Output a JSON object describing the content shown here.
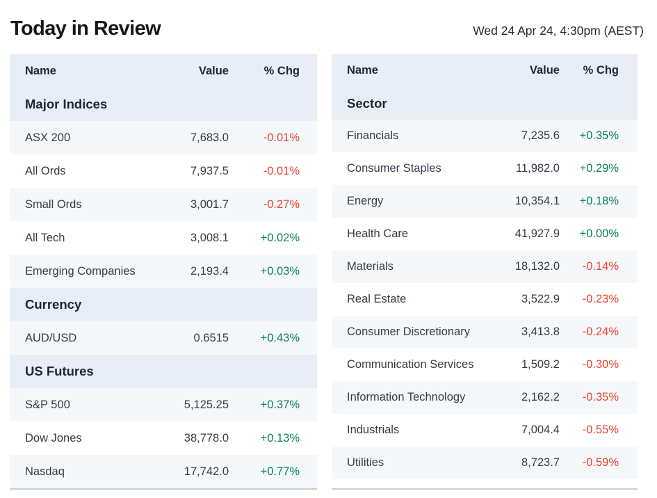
{
  "header": {
    "title": "Today in Review",
    "timestamp": "Wed 24 Apr 24, 4:30pm (AEST)"
  },
  "colors": {
    "positive": "#0d8152",
    "negative": "#ee4130",
    "header_background": "#e8edf6",
    "stripe_background": "#f4f8fb",
    "heading_text": "#1e2631",
    "body_text": "#353c48",
    "table_bottom_border": "#c9cfd8"
  },
  "chart_data": [
    {
      "type": "table",
      "name": "indices-table",
      "columns": [
        "Name",
        "Value",
        "% Chg"
      ],
      "sections": [
        {
          "title": "Major Indices",
          "rows": [
            [
              "ASX 200",
              "7,683.0",
              "-0.01%"
            ],
            [
              "All Ords",
              "7,937.5",
              "-0.01%"
            ],
            [
              "Small Ords",
              "3,001.7",
              "-0.27%"
            ],
            [
              "All Tech",
              "3,008.1",
              "+0.02%"
            ],
            [
              "Emerging Companies",
              "2,193.4",
              "+0.03%"
            ]
          ]
        },
        {
          "title": "Currency",
          "rows": [
            [
              "AUD/USD",
              "0.6515",
              "+0.43%"
            ]
          ]
        },
        {
          "title": "US Futures",
          "rows": [
            [
              "S&P 500",
              "5,125.25",
              "+0.37%"
            ],
            [
              "Dow Jones",
              "38,778.0",
              "+0.13%"
            ],
            [
              "Nasdaq",
              "17,742.0",
              "+0.77%"
            ]
          ]
        }
      ]
    },
    {
      "type": "table",
      "name": "sectors-table",
      "columns": [
        "Name",
        "Value",
        "% Chg"
      ],
      "sections": [
        {
          "title": "Sector",
          "rows": [
            [
              "Financials",
              "7,235.6",
              "+0.35%"
            ],
            [
              "Consumer Staples",
              "11,982.0",
              "+0.29%"
            ],
            [
              "Energy",
              "10,354.1",
              "+0.18%"
            ],
            [
              "Health Care",
              "41,927.9",
              "+0.00%"
            ],
            [
              "Materials",
              "18,132.0",
              "-0.14%"
            ],
            [
              "Real Estate",
              "3,522.9",
              "-0.23%"
            ],
            [
              "Consumer Discretionary",
              "3,413.8",
              "-0.24%"
            ],
            [
              "Communication Services",
              "1,509.2",
              "-0.30%"
            ],
            [
              "Information Technology",
              "2,162.2",
              "-0.35%"
            ],
            [
              "Industrials",
              "7,004.4",
              "-0.55%"
            ],
            [
              "Utilities",
              "8,723.7",
              "-0.59%"
            ]
          ]
        }
      ]
    }
  ]
}
